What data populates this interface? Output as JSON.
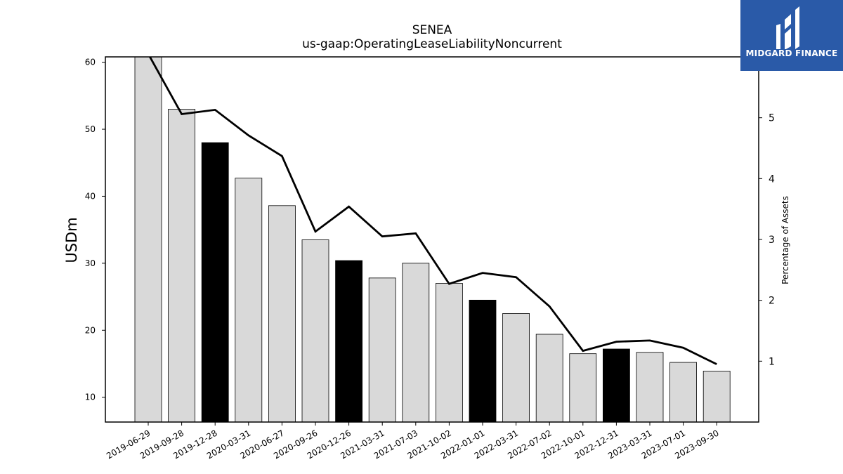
{
  "brand": {
    "name": "MIDGARD FINANCE",
    "color": "#2a5aa8"
  },
  "chart_data": {
    "type": "bar",
    "title": "SENEA",
    "subtitle": "us-gaap:OperatingLeaseLiabilityNoncurrent",
    "ylabel": "USDm",
    "ylabel_right": "Percentage of Assets",
    "ylim": [
      6.3,
      60.8
    ],
    "ylim_right": [
      0,
      6.0
    ],
    "yticks": [
      10,
      20,
      30,
      40,
      50,
      60
    ],
    "yticks_right": [
      1,
      2,
      3,
      4,
      5
    ],
    "grid": false,
    "categories": [
      "2019-06-29",
      "2019-09-28",
      "2019-12-28",
      "2020-03-31",
      "2020-06-27",
      "2020-09-26",
      "2020-12-26",
      "2021-03-31",
      "2021-07-03",
      "2021-10-02",
      "2022-01-01",
      "2022-03-31",
      "2022-07-02",
      "2022-10-01",
      "2022-12-31",
      "2023-03-31",
      "2023-07-01",
      "2023-09-30"
    ],
    "series": [
      {
        "axis": "left",
        "kind": "bar",
        "values": [
          61.0,
          53.0,
          48.0,
          42.7,
          38.6,
          33.5,
          30.4,
          27.8,
          30.0,
          27.0,
          24.5,
          22.5,
          19.4,
          16.5,
          17.2,
          16.7,
          15.2,
          13.9
        ],
        "highlight": [
          false,
          false,
          true,
          false,
          false,
          false,
          true,
          false,
          false,
          false,
          true,
          false,
          false,
          false,
          true,
          false,
          false,
          false
        ],
        "color": "#d9d9d9",
        "highlight_color": "#000000"
      },
      {
        "axis": "right",
        "kind": "line",
        "values": [
          6.05,
          5.06,
          5.13,
          4.71,
          4.37,
          3.13,
          3.54,
          3.05,
          3.1,
          2.27,
          2.45,
          2.38,
          1.9,
          1.17,
          1.32,
          1.34,
          1.22,
          0.95
        ],
        "color": "#000000"
      }
    ]
  }
}
